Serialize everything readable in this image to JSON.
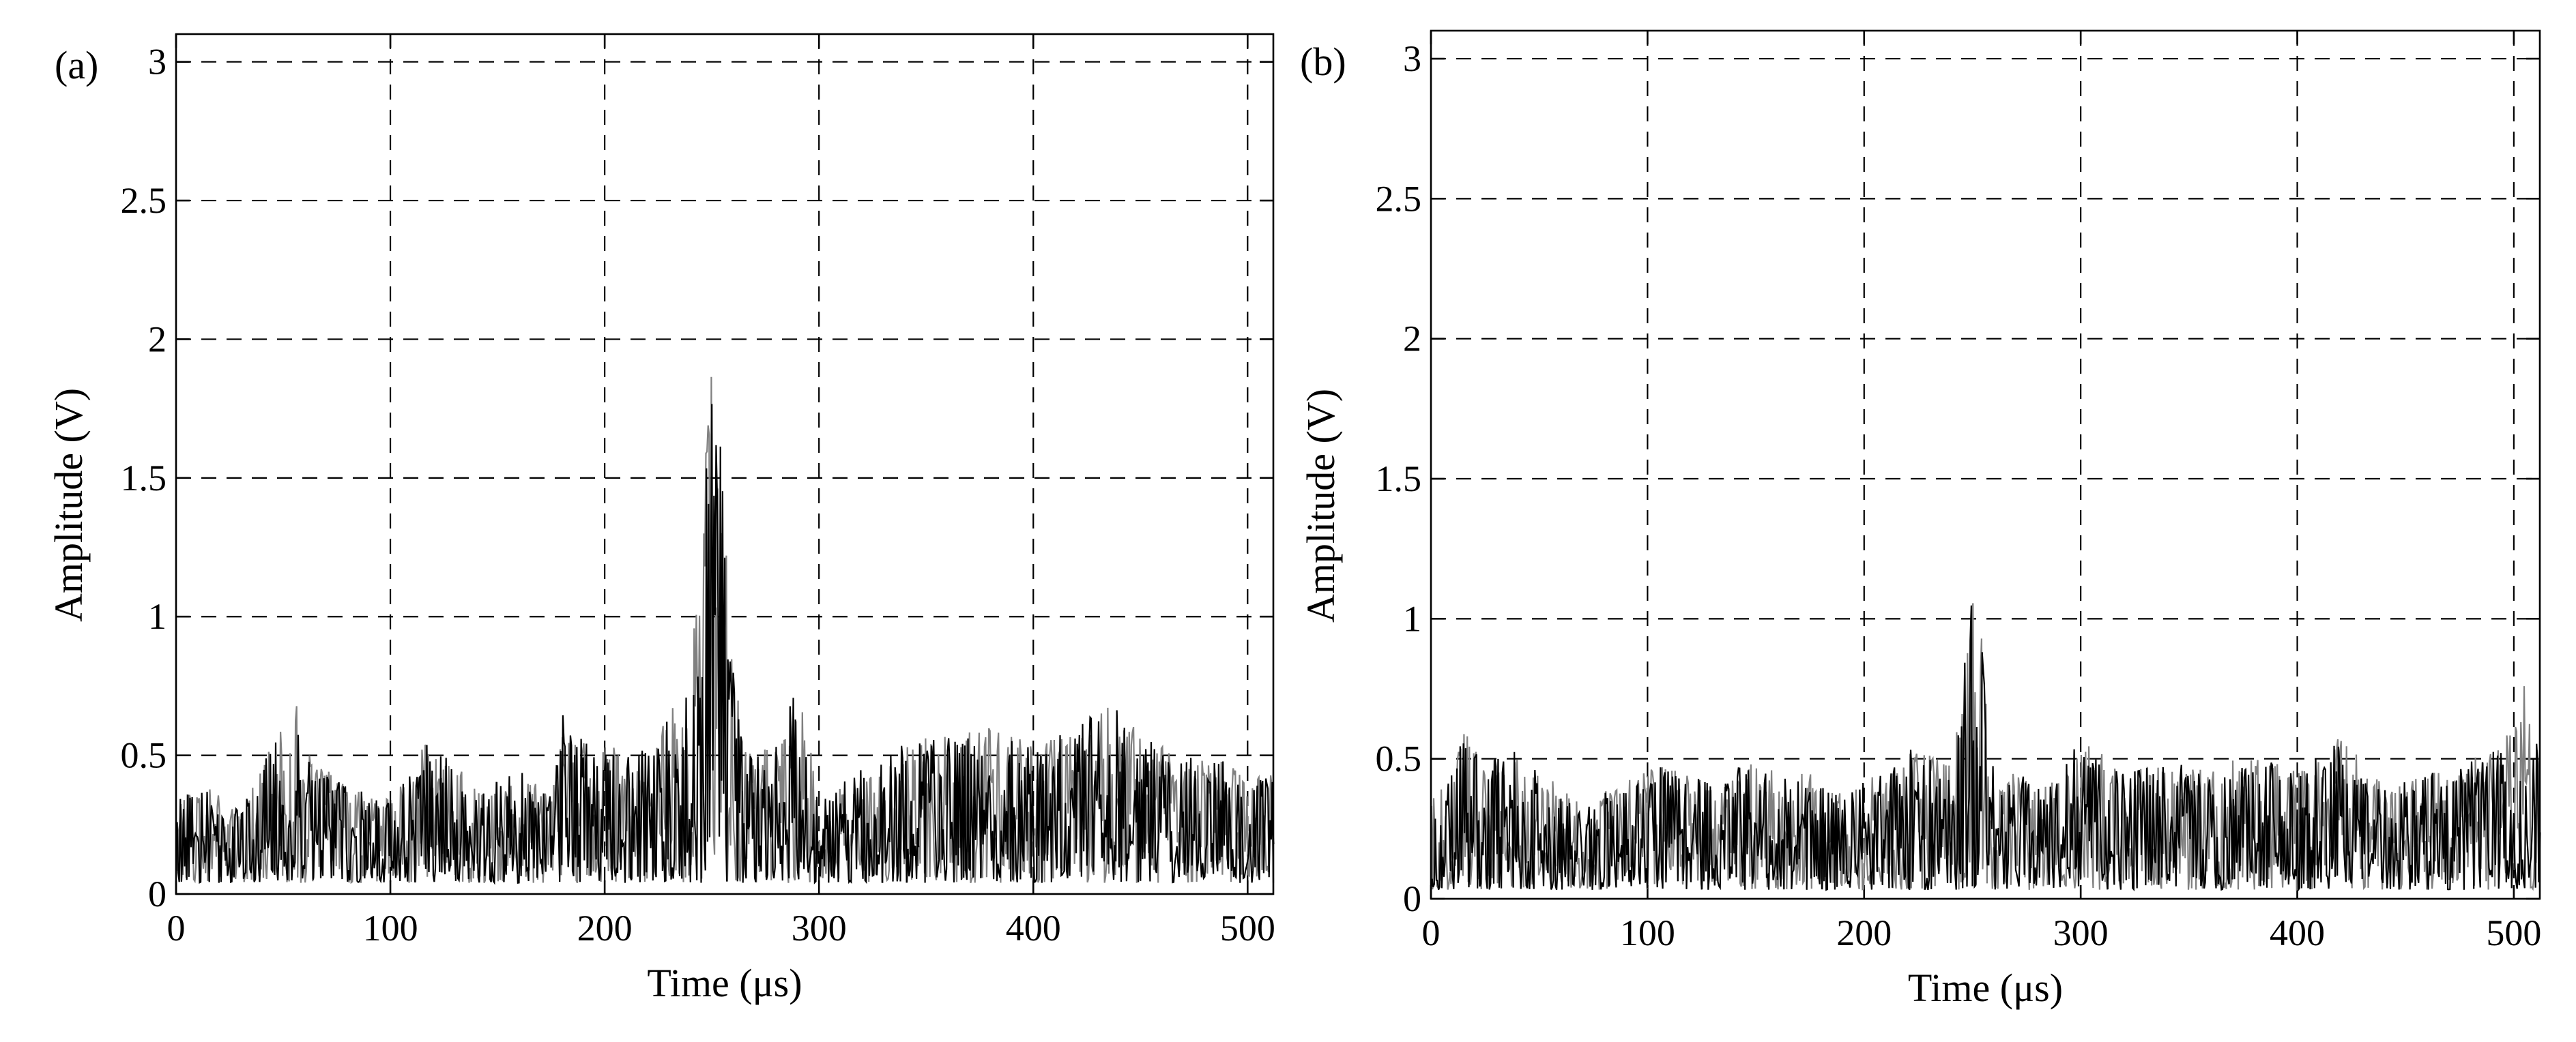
{
  "chart_data": [
    {
      "type": "line",
      "panel_label": "(a)",
      "xlabel": "Time (μs)",
      "ylabel": "Amplitude (V)",
      "xlim": [
        0,
        512
      ],
      "ylim": [
        0,
        3.1
      ],
      "xticks": [
        0,
        100,
        200,
        300,
        400,
        500
      ],
      "xtick_labels": [
        "0",
        "100",
        "200",
        "300",
        "400",
        "500"
      ],
      "yticks": [
        0,
        0.5,
        1,
        1.5,
        2,
        2.5,
        3
      ],
      "ytick_labels": [
        "0",
        "0.5",
        "1",
        "1.5",
        "2",
        "2.5",
        "3"
      ],
      "grid": true,
      "series_colors": [
        "#000000",
        "#808080"
      ],
      "noise_level": 0.2,
      "x": [
        0,
        15,
        30,
        45,
        52,
        55,
        58,
        65,
        80,
        100,
        110,
        115,
        125,
        140,
        160,
        175,
        180,
        185,
        195,
        210,
        225,
        235,
        240,
        245,
        248,
        250,
        252,
        255,
        258,
        262,
        270,
        280,
        290,
        300,
        320,
        340,
        360,
        380,
        400,
        420,
        435,
        440,
        445,
        455,
        470,
        490,
        500,
        512
      ],
      "y": [
        0.35,
        0.38,
        0.3,
        0.55,
        0.62,
        0.72,
        0.6,
        0.5,
        0.38,
        0.35,
        0.45,
        0.55,
        0.52,
        0.4,
        0.45,
        0.35,
        0.66,
        0.55,
        0.6,
        0.5,
        0.6,
        0.75,
        0.9,
        1.3,
        1.95,
        2.1,
        1.95,
        1.55,
        0.95,
        0.7,
        0.5,
        0.55,
        0.75,
        0.35,
        0.45,
        0.55,
        0.58,
        0.6,
        0.55,
        0.6,
        0.7,
        0.66,
        0.62,
        0.55,
        0.5,
        0.5,
        0.4,
        0.45
      ]
    },
    {
      "type": "line",
      "panel_label": "(b)",
      "xlabel": "Time (μs)",
      "ylabel": "Amplitude (V)",
      "xlim": [
        0,
        512
      ],
      "ylim": [
        0,
        3.1
      ],
      "xticks": [
        0,
        100,
        200,
        300,
        400,
        500
      ],
      "xtick_labels": [
        "0",
        "100",
        "200",
        "300",
        "400",
        "500"
      ],
      "yticks": [
        0,
        0.5,
        1,
        1.5,
        2,
        2.5,
        3
      ],
      "ytick_labels": [
        "0",
        "0.5",
        "1",
        "1.5",
        "2",
        "2.5",
        "3"
      ],
      "grid": true,
      "series_colors": [
        "#000000",
        "#808080"
      ],
      "noise_level": 0.16,
      "x": [
        0,
        10,
        15,
        25,
        35,
        50,
        70,
        90,
        110,
        115,
        130,
        145,
        160,
        175,
        185,
        200,
        215,
        225,
        235,
        240,
        245,
        248,
        250,
        252,
        255,
        258,
        262,
        270,
        285,
        300,
        320,
        340,
        360,
        370,
        385,
        400,
        420,
        440,
        460,
        480,
        495,
        505,
        508,
        512
      ],
      "y": [
        0.35,
        0.45,
        0.62,
        0.48,
        0.55,
        0.45,
        0.35,
        0.42,
        0.5,
        0.48,
        0.42,
        0.5,
        0.45,
        0.45,
        0.38,
        0.42,
        0.5,
        0.55,
        0.5,
        0.5,
        0.7,
        1.05,
        1.17,
        1.1,
        0.85,
        0.5,
        0.45,
        0.45,
        0.4,
        0.58,
        0.45,
        0.5,
        0.45,
        0.52,
        0.5,
        0.45,
        0.58,
        0.4,
        0.45,
        0.5,
        0.55,
        0.78,
        0.6,
        0.55
      ]
    }
  ]
}
